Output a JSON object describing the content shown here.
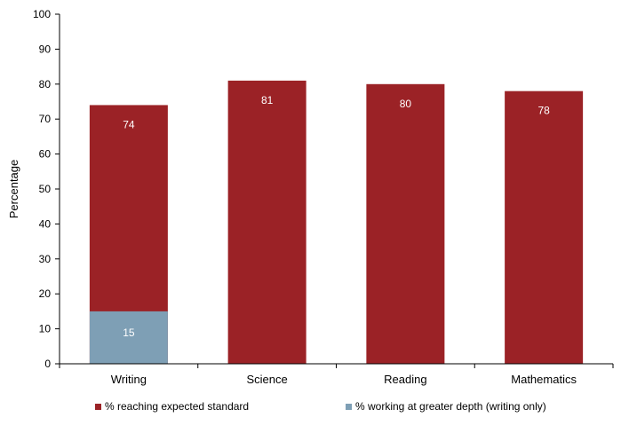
{
  "chart_data": {
    "type": "bar",
    "stacked": true,
    "categories": [
      "Writing",
      "Science",
      "Reading",
      "Mathematics"
    ],
    "series": [
      {
        "name": "% reaching expected standard",
        "color": "#9b2226",
        "values": [
          74,
          81,
          80,
          78
        ],
        "labels": [
          "74",
          "81",
          "80",
          "78"
        ]
      },
      {
        "name": "% working at greater depth (writing only)",
        "color": "#7e9fb5",
        "values": [
          15,
          null,
          null,
          null
        ],
        "labels": [
          "15",
          "",
          "",
          ""
        ]
      }
    ],
    "title": "",
    "xlabel": "",
    "ylabel": "Percentage",
    "ylim": [
      0,
      100
    ],
    "yticks": [
      "0",
      "10",
      "20",
      "30",
      "40",
      "50",
      "60",
      "70",
      "80",
      "90",
      "100"
    ],
    "grid": false,
    "legend_position": "bottom"
  }
}
